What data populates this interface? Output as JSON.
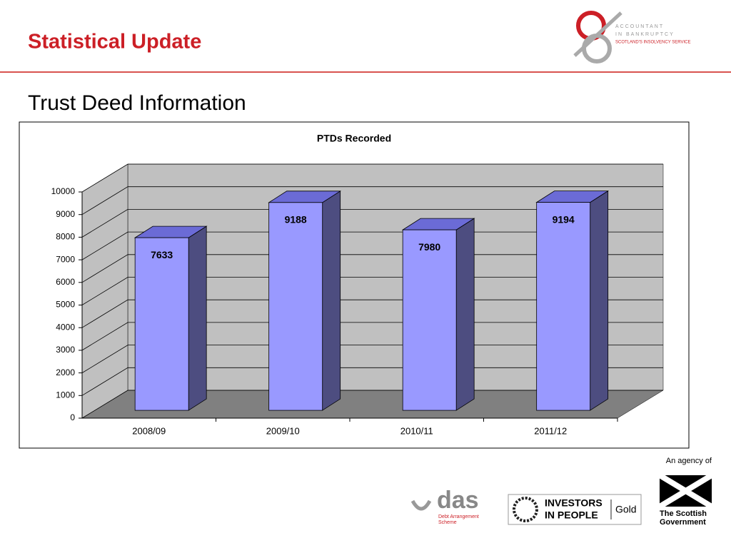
{
  "slide": {
    "title": "Statistical Update",
    "subtitle": "Trust Deed Information"
  },
  "logos": {
    "aib": [
      "ACCOUNTANT",
      "IN BANKRUPTCY",
      "SCOTLAND'S INSOLVENCY SERVICE"
    ],
    "das": [
      "das",
      "Debt Arrangement",
      "Scheme"
    ],
    "iip": [
      "INVESTORS",
      "IN PEOPLE",
      "Gold"
    ],
    "agency": [
      "An agency of",
      "The Scottish",
      "Government"
    ]
  },
  "chart_data": {
    "type": "bar3d",
    "title": "PTDs Recorded",
    "categories": [
      "2008/09",
      "2009/10",
      "2010/11",
      "2011/12"
    ],
    "values": [
      7633,
      9188,
      7980,
      9194
    ],
    "color": "#9999ff",
    "side_color": "#4d4d80",
    "top_color": "#6b6bd6",
    "wall_color": "#c0c0c0",
    "floor_color": "#808080",
    "ylim": [
      0,
      10000
    ],
    "yticks": [
      0,
      1000,
      2000,
      3000,
      4000,
      5000,
      6000,
      7000,
      8000,
      9000,
      10000
    ],
    "grid": true
  }
}
